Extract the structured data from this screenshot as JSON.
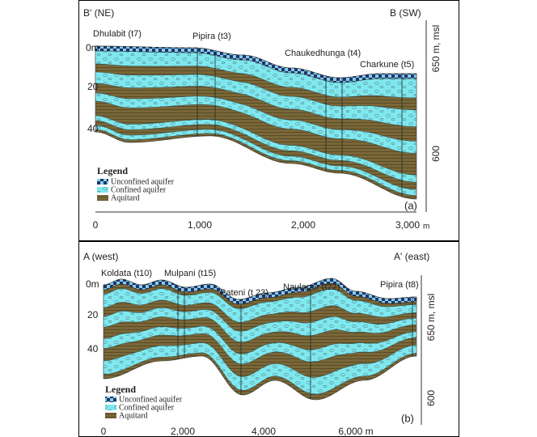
{
  "panels": [
    {
      "label": "(a)",
      "left_end": "B' (NE)",
      "right_end": "B (SW)",
      "wells": [
        "Dhulabit (t7)",
        "Pipira (t3)",
        "Chaukedhunga (t4)",
        "Charkune (t5)"
      ],
      "depth_labels": [
        "0m",
        "20",
        "40"
      ],
      "elevation_title": "650 m, msl",
      "elevation_labels": [
        "600"
      ],
      "distance_labels": [
        "0",
        "1,000",
        "2,000",
        "3,000"
      ],
      "distance_unit": "m",
      "legend": {
        "title": "Legend",
        "items": [
          "Unconfined aquifer",
          "Confined aquifer",
          "Aquitard"
        ]
      }
    },
    {
      "label": "(b)",
      "left_end": "A (west)",
      "right_end": "A' (east)",
      "wells": [
        "Koldata (t10)",
        "Mulpani (t15)",
        "Pateni (t 23)",
        "Naulapur (t22)",
        "Pipira (t8)"
      ],
      "depth_labels": [
        "0m",
        "20",
        "40"
      ],
      "elevation_title": "650 m, msl",
      "elevation_labels": [
        "600"
      ],
      "distance_labels": [
        "0",
        "2,000",
        "4,000",
        "6,000 m"
      ],
      "legend": {
        "title": "Legend",
        "items": [
          "Unconfined aquifer",
          "Confined aquifer",
          "Aquitard"
        ]
      }
    }
  ]
}
